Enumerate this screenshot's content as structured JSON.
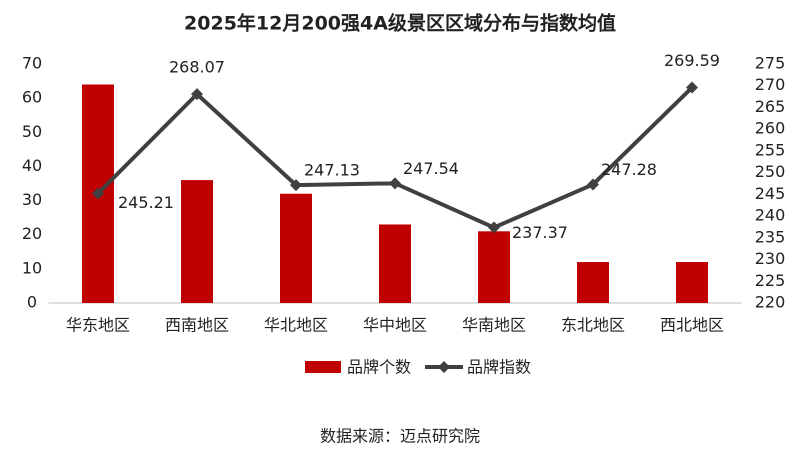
{
  "chart_data": {
    "type": "bar",
    "title": "2025年12月200强4A级景区区域分布与指数均值",
    "categories": [
      "华东地区",
      "西南地区",
      "华北地区",
      "华中地区",
      "华南地区",
      "东北地区",
      "西北地区"
    ],
    "series": [
      {
        "name": "品牌个数",
        "type": "bar",
        "color": "#c00000",
        "values": [
          64,
          36,
          32,
          23,
          21,
          12,
          12
        ]
      },
      {
        "name": "品牌指数",
        "type": "line",
        "axis": "y2",
        "color": "#404040",
        "values": [
          245.21,
          268.07,
          247.13,
          247.54,
          237.37,
          247.28,
          269.59
        ]
      }
    ],
    "ylim": [
      0,
      70
    ],
    "yticks": [
      0,
      10,
      20,
      30,
      40,
      50,
      60,
      70
    ],
    "y2lim": [
      220,
      275
    ],
    "y2ticks": [
      220,
      225,
      230,
      235,
      240,
      245,
      250,
      255,
      260,
      265,
      270,
      275
    ],
    "grid": false,
    "legend": "bottom",
    "source": "数据来源：迈点研究院"
  }
}
